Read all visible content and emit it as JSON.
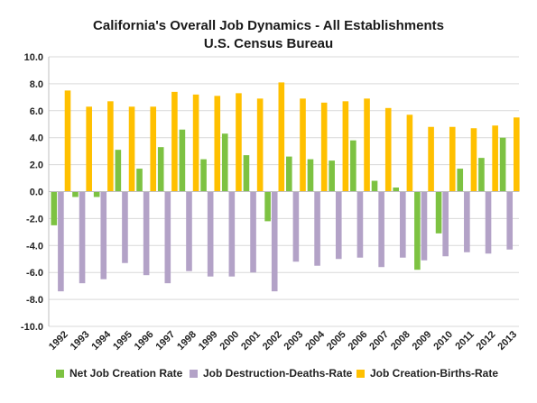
{
  "chart_data": {
    "type": "bar",
    "title": "California's Overall Job Dynamics - All Establishments",
    "subtitle": "U.S. Census Bureau",
    "xlabel": "",
    "ylabel": "",
    "ylim": [
      -10,
      10
    ],
    "yticks": [
      "10.0",
      "8.0",
      "6.0",
      "4.0",
      "2.0",
      "0.0",
      "-2.0",
      "-4.0",
      "-6.0",
      "-8.0",
      "-10.0"
    ],
    "grid": true,
    "legend_position": "bottom",
    "categories": [
      "1992",
      "1993",
      "1994",
      "1995",
      "1996",
      "1997",
      "1998",
      "1999",
      "2000",
      "2001",
      "2002",
      "2003",
      "2004",
      "2005",
      "2006",
      "2007",
      "2008",
      "2009",
      "2010",
      "2011",
      "2012",
      "2013"
    ],
    "series": [
      {
        "name": "Net Job Creation Rate",
        "color": "#7dc242",
        "values": [
          -2.5,
          -0.4,
          -0.4,
          3.1,
          1.7,
          3.3,
          4.6,
          2.4,
          4.3,
          2.7,
          -2.2,
          2.6,
          2.4,
          2.3,
          3.8,
          0.8,
          0.3,
          -5.8,
          -3.1,
          1.7,
          2.5,
          4.0
        ]
      },
      {
        "name": "Job Destruction-Deaths-Rate",
        "color": "#b3a2c7",
        "values": [
          -7.4,
          -6.8,
          -6.5,
          -5.3,
          -6.2,
          -6.8,
          -5.9,
          -6.3,
          -6.3,
          -6.0,
          -7.4,
          -5.2,
          -5.5,
          -5.0,
          -4.9,
          -5.6,
          -4.9,
          -5.1,
          -4.8,
          -4.5,
          -4.6,
          -4.3
        ]
      },
      {
        "name": "Job Creation-Births-Rate",
        "color": "#ffc000",
        "values": [
          7.5,
          6.3,
          6.7,
          6.3,
          6.3,
          7.4,
          7.2,
          7.1,
          7.3,
          6.9,
          8.1,
          6.9,
          6.6,
          6.7,
          6.9,
          6.2,
          5.7,
          4.8,
          4.8,
          4.7,
          4.9,
          5.5
        ]
      }
    ]
  }
}
